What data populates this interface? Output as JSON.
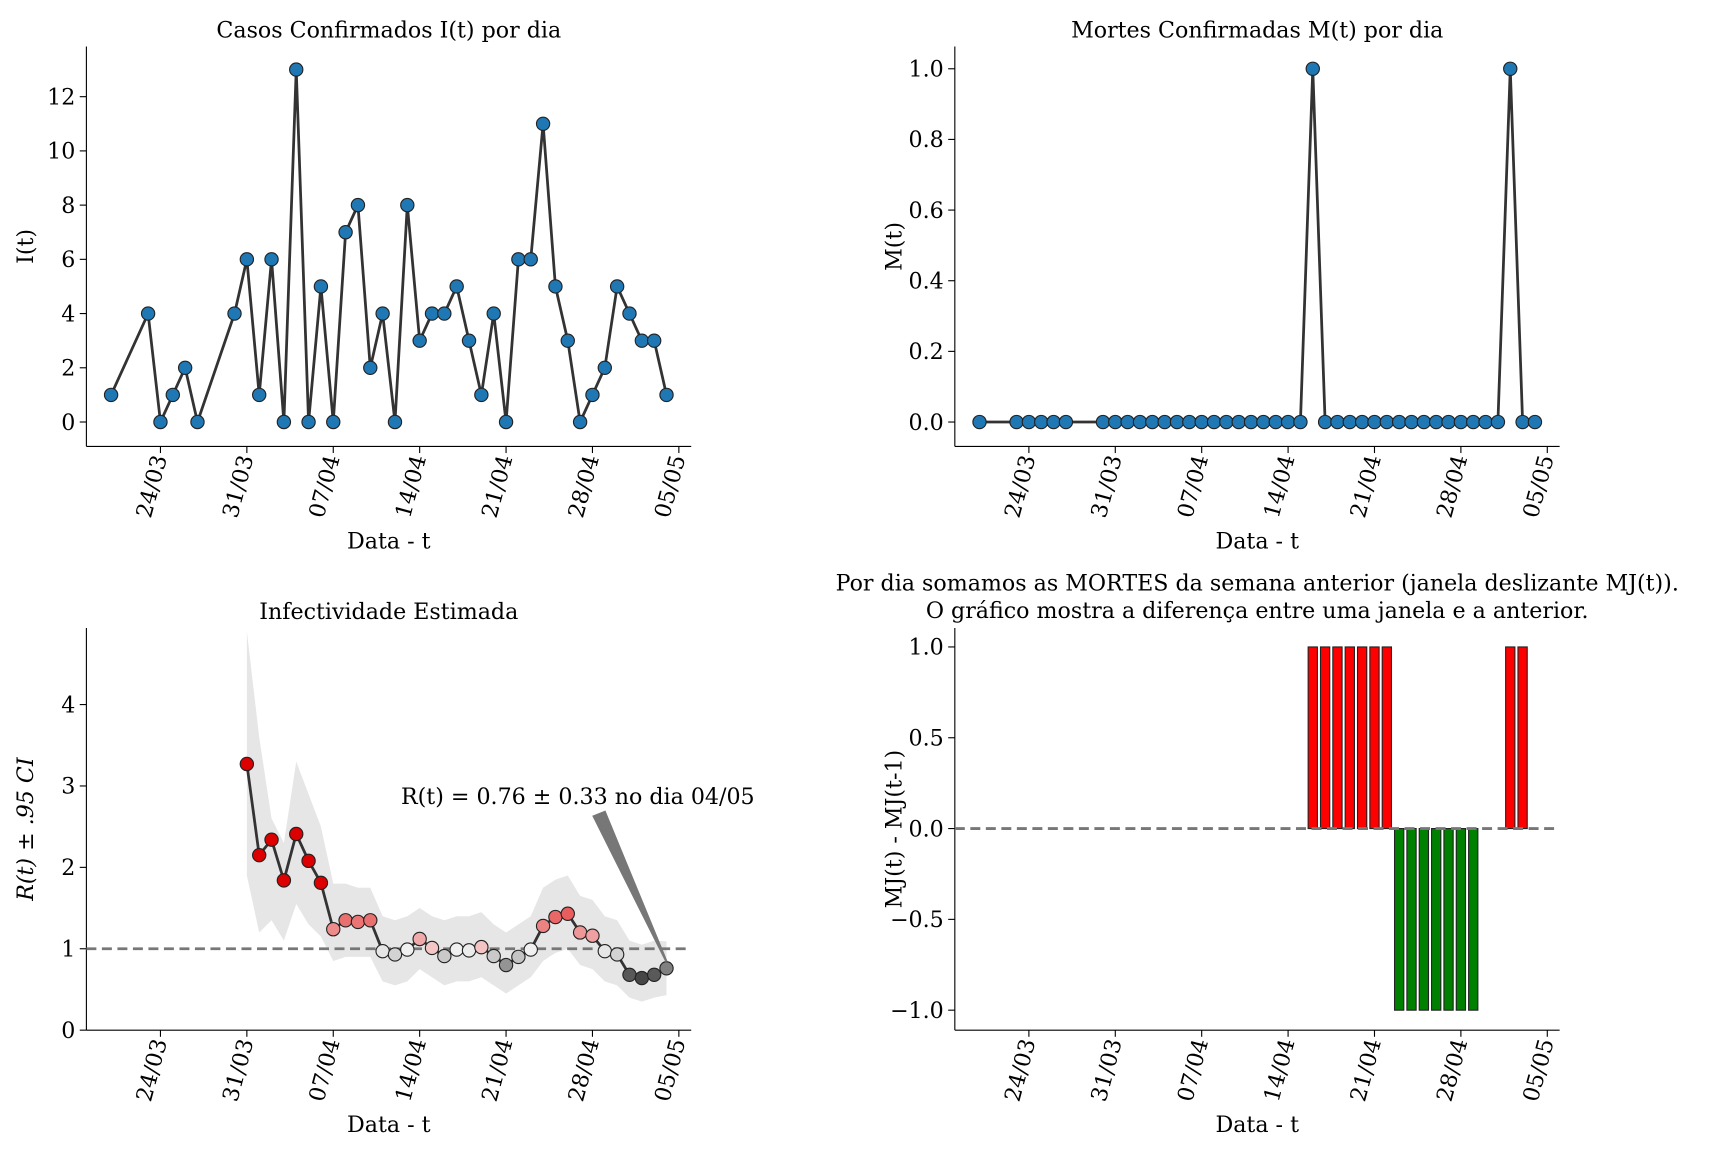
{
  "chart_data": [
    {
      "type": "line",
      "title": "Casos Confirmados I(t) por dia",
      "xlabel": "Data - t",
      "ylabel": "I(t)",
      "x": [
        "20/03",
        "23/03",
        "24/03",
        "25/03",
        "26/03",
        "27/03",
        "30/03",
        "31/03",
        "01/04",
        "02/04",
        "03/04",
        "04/04",
        "05/04",
        "06/04",
        "07/04",
        "08/04",
        "09/04",
        "10/04",
        "11/04",
        "12/04",
        "13/04",
        "14/04",
        "15/04",
        "16/04",
        "17/04",
        "18/04",
        "19/04",
        "20/04",
        "21/04",
        "22/04",
        "23/04",
        "24/04",
        "25/04",
        "26/04",
        "27/04",
        "28/04",
        "29/04",
        "30/04",
        "01/05",
        "02/05",
        "03/05",
        "04/05"
      ],
      "series": [
        {
          "color": "#1f77b4",
          "line_color": "#333333",
          "values": [
            1,
            4,
            0,
            1,
            2,
            0,
            4,
            6,
            1,
            6,
            0,
            13,
            0,
            5,
            0,
            7,
            8,
            2,
            4,
            0,
            8,
            3,
            4,
            4,
            5,
            3,
            1,
            4,
            0,
            6,
            6,
            11,
            5,
            3,
            0,
            1,
            2,
            5,
            4,
            3,
            3,
            1
          ]
        }
      ],
      "xlim": [
        "18/03",
        "06/05"
      ],
      "xticks": [
        "24/03",
        "31/03",
        "07/04",
        "14/04",
        "21/04",
        "28/04",
        "05/05"
      ],
      "ylim": [
        -0.9,
        13.85
      ],
      "yticks": [
        0,
        2,
        4,
        6,
        8,
        10,
        12
      ]
    },
    {
      "type": "line",
      "title": "Mortes Confirmadas M(t) por dia",
      "xlabel": "Data - t",
      "ylabel": "M(t)",
      "x": [
        "20/03",
        "23/03",
        "24/03",
        "25/03",
        "26/03",
        "27/03",
        "30/03",
        "31/03",
        "01/04",
        "02/04",
        "03/04",
        "04/04",
        "05/04",
        "06/04",
        "07/04",
        "08/04",
        "09/04",
        "10/04",
        "11/04",
        "12/04",
        "13/04",
        "14/04",
        "15/04",
        "16/04",
        "17/04",
        "18/04",
        "19/04",
        "20/04",
        "21/04",
        "22/04",
        "23/04",
        "24/04",
        "25/04",
        "26/04",
        "27/04",
        "28/04",
        "29/04",
        "30/04",
        "01/05",
        "02/05",
        "03/05",
        "04/05"
      ],
      "series": [
        {
          "color": "#1f77b4",
          "line_color": "#333333",
          "values": [
            0,
            0,
            0,
            0,
            0,
            0,
            0,
            0,
            0,
            0,
            0,
            0,
            0,
            0,
            0,
            0,
            0,
            0,
            0,
            0,
            0,
            0,
            0,
            1,
            0,
            0,
            0,
            0,
            0,
            0,
            0,
            0,
            0,
            0,
            0,
            0,
            0,
            0,
            0,
            1,
            0,
            0
          ]
        }
      ],
      "xlim": [
        "18/03",
        "06/05"
      ],
      "xticks": [
        "24/03",
        "31/03",
        "07/04",
        "14/04",
        "21/04",
        "28/04",
        "05/05"
      ],
      "ylim": [
        -0.069,
        1.063
      ],
      "yticks": [
        {
          "value": 0,
          "label": "0.0"
        },
        {
          "value": 0.2,
          "label": "0.2"
        },
        {
          "value": 0.4,
          "label": "0.4"
        },
        {
          "value": 0.6,
          "label": "0.6"
        },
        {
          "value": 0.8,
          "label": "0.8"
        },
        {
          "value": 1,
          "label": "1.0"
        }
      ]
    },
    {
      "type": "line_ci",
      "title": "Infectividade Estimada",
      "xlabel": "Data - t",
      "ylabel": "R(t) ± .95 CI",
      "x": [
        "31/03",
        "01/04",
        "02/04",
        "03/04",
        "04/04",
        "05/04",
        "06/04",
        "07/04",
        "08/04",
        "09/04",
        "10/04",
        "11/04",
        "12/04",
        "13/04",
        "14/04",
        "15/04",
        "16/04",
        "17/04",
        "18/04",
        "19/04",
        "20/04",
        "21/04",
        "22/04",
        "23/04",
        "24/04",
        "25/04",
        "26/04",
        "27/04",
        "28/04",
        "29/04",
        "30/04",
        "01/05",
        "02/05",
        "03/05",
        "04/05"
      ],
      "series": [
        {
          "line_color": "#333333",
          "band_color": "#e6e6e6",
          "values": [
            3.27,
            2.15,
            2.34,
            1.84,
            2.41,
            2.08,
            1.81,
            1.24,
            1.35,
            1.33,
            1.35,
            0.97,
            0.93,
            0.99,
            1.12,
            1.01,
            0.91,
            0.99,
            0.98,
            1.02,
            0.91,
            0.8,
            0.9,
            0.99,
            1.28,
            1.39,
            1.43,
            1.2,
            1.16,
            0.97,
            0.93,
            0.68,
            0.64,
            0.68,
            0.76
          ],
          "lower": [
            1.9,
            1.2,
            1.35,
            1.1,
            1.55,
            1.3,
            1.15,
            0.85,
            0.9,
            0.9,
            0.9,
            0.6,
            0.55,
            0.6,
            0.75,
            0.65,
            0.55,
            0.6,
            0.6,
            0.65,
            0.55,
            0.45,
            0.55,
            0.65,
            0.85,
            0.95,
            1.0,
            0.8,
            0.75,
            0.6,
            0.55,
            0.4,
            0.35,
            0.4,
            0.43
          ],
          "upper": [
            4.9,
            3.6,
            2.6,
            2.3,
            3.3,
            2.9,
            2.5,
            1.8,
            1.8,
            1.75,
            1.75,
            1.4,
            1.35,
            1.4,
            1.5,
            1.4,
            1.35,
            1.4,
            1.4,
            1.45,
            1.3,
            1.2,
            1.3,
            1.4,
            1.75,
            1.85,
            1.9,
            1.65,
            1.6,
            1.4,
            1.35,
            1.1,
            1.05,
            1.1,
            1.09
          ]
        }
      ],
      "hline": 1,
      "annotation": "R(t) = 0.76 ± 0.33 no dia 04/05",
      "xlim": [
        "18/03",
        "06/05"
      ],
      "xticks": [
        "24/03",
        "31/03",
        "07/04",
        "14/04",
        "21/04",
        "28/04",
        "05/05"
      ],
      "ylim": [
        0,
        4.94
      ],
      "yticks": [
        0,
        1,
        2,
        3,
        4
      ]
    },
    {
      "type": "bar",
      "title": [
        "Por dia somamos as MORTES da semana anterior (janela deslizante MJ(t)).",
        "O gráfico mostra a diferença entre uma janela e a anterior."
      ],
      "xlabel": "Data - t",
      "ylabel": "MJ(t) - MJ(t-1)",
      "x": [
        "20/03",
        "23/03",
        "24/03",
        "25/03",
        "26/03",
        "27/03",
        "30/03",
        "31/03",
        "01/04",
        "02/04",
        "03/04",
        "04/04",
        "05/04",
        "06/04",
        "07/04",
        "08/04",
        "09/04",
        "10/04",
        "11/04",
        "12/04",
        "13/04",
        "14/04",
        "15/04",
        "16/04",
        "17/04",
        "18/04",
        "19/04",
        "20/04",
        "21/04",
        "22/04",
        "23/04",
        "24/04",
        "25/04",
        "26/04",
        "27/04",
        "28/04",
        "29/04",
        "30/04",
        "01/05",
        "02/05",
        "03/05",
        "04/05"
      ],
      "values": [
        0,
        0,
        0,
        0,
        0,
        0,
        0,
        0,
        0,
        0,
        0,
        0,
        0,
        0,
        0,
        0,
        0,
        0,
        0,
        0,
        0,
        0,
        0,
        1,
        1,
        1,
        1,
        1,
        1,
        1,
        -1,
        -1,
        -1,
        -1,
        -1,
        -1,
        -1,
        0,
        0,
        1,
        1,
        0
      ],
      "color_positive": "#ff0000",
      "color_negative": "#008000",
      "hline": 0,
      "xlim": [
        "18/03",
        "06/05"
      ],
      "xticks": [
        "24/03",
        "31/03",
        "07/04",
        "14/04",
        "21/04",
        "28/04",
        "05/05"
      ],
      "ylim": [
        -1.11,
        1.104
      ],
      "yticks": [
        {
          "value": -1,
          "label": "−1.0"
        },
        {
          "value": -0.5,
          "label": "−0.5"
        },
        {
          "value": 0,
          "label": "0.0"
        },
        {
          "value": 0.5,
          "label": "0.5"
        },
        {
          "value": 1,
          "label": "1.0"
        }
      ]
    }
  ]
}
